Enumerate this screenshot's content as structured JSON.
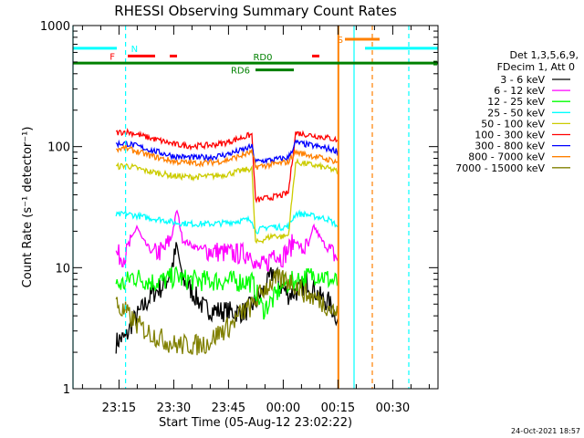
{
  "chart_data": {
    "type": "line",
    "title": "RHESSI Observing Summary Count Rates",
    "xlabel": "Start Time (05-Aug-12 23:02:22)",
    "ylabel": "Count Rate (s⁻¹ detector⁻¹)",
    "yscale": "log",
    "ylim": [
      1,
      1000
    ],
    "xlim_min": [
      0,
      100
    ],
    "x_unit": "minutes after 23:02:22",
    "y_ticks": [
      {
        "value": 1,
        "label": "1"
      },
      {
        "value": 10,
        "label": "10"
      },
      {
        "value": 100,
        "label": "100"
      },
      {
        "value": 1000,
        "label": "1000"
      }
    ],
    "x_ticks": [
      {
        "value": 12.6,
        "label": "23:15"
      },
      {
        "value": 27.6,
        "label": "23:30"
      },
      {
        "value": 42.6,
        "label": "23:45"
      },
      {
        "value": 57.6,
        "label": "00:00"
      },
      {
        "value": 72.6,
        "label": "00:15"
      },
      {
        "value": 87.6,
        "label": "00:30"
      }
    ],
    "legend_header": [
      "Det 1,3,5,6,9,",
      "FDecim 1, Att 0"
    ],
    "legend_position": "right",
    "footer_date": "24-Oct-2021 18:57",
    "series": [
      {
        "name": "3 - 6 keV",
        "color": "#000000",
        "points": [
          [
            11.8,
            2.4
          ],
          [
            13,
            2.6
          ],
          [
            14.4,
            2.6
          ],
          [
            16,
            3.4
          ],
          [
            19,
            4.6
          ],
          [
            22,
            6.2
          ],
          [
            25,
            7.1
          ],
          [
            27,
            9.8
          ],
          [
            28.5,
            15
          ],
          [
            30,
            8.2
          ],
          [
            33,
            6.1
          ],
          [
            36,
            4.6
          ],
          [
            40,
            4.4
          ],
          [
            44,
            4.3
          ],
          [
            47,
            4.3
          ],
          [
            50,
            5.2
          ],
          [
            53,
            7
          ],
          [
            55,
            9.5
          ],
          [
            57,
            7
          ],
          [
            59,
            6
          ],
          [
            62,
            6.5
          ],
          [
            64,
            7.8
          ],
          [
            66,
            6.6
          ],
          [
            68,
            5.6
          ],
          [
            70,
            5.2
          ],
          [
            71,
            4.6
          ],
          [
            72.6,
            3.8
          ]
        ]
      },
      {
        "name": "6 - 12 keV",
        "color": "#ff00ff",
        "points": [
          [
            11.8,
            13
          ],
          [
            13,
            12.5
          ],
          [
            14.4,
            12.5
          ],
          [
            16,
            17
          ],
          [
            17.5,
            22
          ],
          [
            19,
            17
          ],
          [
            22,
            13
          ],
          [
            25,
            14
          ],
          [
            27,
            18
          ],
          [
            28.5,
            30
          ],
          [
            30,
            17
          ],
          [
            33,
            15
          ],
          [
            36,
            14
          ],
          [
            40,
            13.5
          ],
          [
            44,
            13
          ],
          [
            47,
            13
          ],
          [
            49,
            13.5
          ],
          [
            50,
            10
          ],
          [
            53,
            10.5
          ],
          [
            55,
            14
          ],
          [
            57,
            12
          ],
          [
            59,
            14
          ],
          [
            61,
            17
          ],
          [
            62.5,
            14
          ],
          [
            64.5,
            15
          ],
          [
            66,
            22
          ],
          [
            68,
            17
          ],
          [
            70,
            14
          ],
          [
            72.6,
            12
          ]
        ]
      },
      {
        "name": "12 - 25 keV",
        "color": "#00ff00",
        "points": [
          [
            11.8,
            7.2
          ],
          [
            14.4,
            7.4
          ],
          [
            16,
            8.5
          ],
          [
            18,
            8.2
          ],
          [
            22,
            7.6
          ],
          [
            25,
            7.8
          ],
          [
            28.5,
            8.6
          ],
          [
            30,
            8
          ],
          [
            35,
            7.8
          ],
          [
            40,
            7.8
          ],
          [
            44,
            7.7
          ],
          [
            47,
            7.7
          ],
          [
            49,
            7.6
          ],
          [
            50,
            6.5
          ],
          [
            52,
            4.5
          ],
          [
            55,
            5.5
          ],
          [
            57,
            7
          ],
          [
            59,
            7.5
          ],
          [
            61,
            7.8
          ],
          [
            65,
            8.5
          ],
          [
            67,
            9
          ],
          [
            70,
            8
          ],
          [
            72.6,
            7.5
          ]
        ]
      },
      {
        "name": "25 - 50 keV",
        "color": "#00ffff",
        "points": [
          [
            11.8,
            27
          ],
          [
            14.4,
            28
          ],
          [
            17,
            27
          ],
          [
            20,
            26
          ],
          [
            24,
            25
          ],
          [
            28,
            23.5
          ],
          [
            33,
            23
          ],
          [
            38,
            23
          ],
          [
            42,
            23.5
          ],
          [
            46,
            24.5
          ],
          [
            49,
            25
          ],
          [
            50,
            20
          ],
          [
            52,
            21
          ],
          [
            54,
            22
          ],
          [
            57,
            21.5
          ],
          [
            59,
            22
          ],
          [
            61,
            28
          ],
          [
            64,
            27.5
          ],
          [
            66,
            26.5
          ],
          [
            68,
            26
          ],
          [
            70,
            25
          ],
          [
            72.6,
            22
          ]
        ]
      },
      {
        "name": "50 - 100 keV",
        "color": "#cccc00",
        "points": [
          [
            11.8,
            68
          ],
          [
            14.4,
            70
          ],
          [
            17,
            67
          ],
          [
            20,
            63
          ],
          [
            24,
            60
          ],
          [
            28,
            57
          ],
          [
            33,
            56
          ],
          [
            38,
            57
          ],
          [
            42,
            59
          ],
          [
            46,
            63
          ],
          [
            49,
            66
          ],
          [
            50,
            16
          ],
          [
            53,
            17.5
          ],
          [
            55,
            18.5
          ],
          [
            57,
            18
          ],
          [
            59,
            18.5
          ],
          [
            61,
            74
          ],
          [
            64,
            72
          ],
          [
            67,
            69
          ],
          [
            70,
            66
          ],
          [
            72.6,
            62
          ]
        ]
      },
      {
        "name": "100 - 300 keV",
        "color": "#ff0000",
        "points": [
          [
            11.8,
            130
          ],
          [
            14.4,
            133
          ],
          [
            17,
            128
          ],
          [
            20,
            120
          ],
          [
            24,
            112
          ],
          [
            28,
            104
          ],
          [
            33,
            101
          ],
          [
            38,
            103
          ],
          [
            42,
            108
          ],
          [
            46,
            118
          ],
          [
            49,
            126
          ],
          [
            50,
            36
          ],
          [
            53,
            37.5
          ],
          [
            55,
            38.5
          ],
          [
            57,
            39.5
          ],
          [
            59,
            41.5
          ],
          [
            61,
            130
          ],
          [
            64,
            126
          ],
          [
            67,
            122
          ],
          [
            70,
            118
          ],
          [
            72.6,
            113
          ]
        ]
      },
      {
        "name": "300 - 800 keV",
        "color": "#0000ff",
        "points": [
          [
            11.8,
            105
          ],
          [
            14.4,
            107
          ],
          [
            17,
            102
          ],
          [
            20,
            96
          ],
          [
            24,
            89
          ],
          [
            28,
            83
          ],
          [
            33,
            81
          ],
          [
            38,
            82
          ],
          [
            42,
            86
          ],
          [
            46,
            93
          ],
          [
            49,
            100
          ],
          [
            50,
            75
          ],
          [
            53,
            77
          ],
          [
            55,
            78
          ],
          [
            57,
            79.5
          ],
          [
            59,
            81
          ],
          [
            61,
            108
          ],
          [
            64,
            104
          ],
          [
            67,
            100
          ],
          [
            70,
            96
          ],
          [
            72.6,
            92
          ]
        ]
      },
      {
        "name": "800 - 7000 keV",
        "color": "#ff8000",
        "points": [
          [
            11.8,
            95
          ],
          [
            14.4,
            97
          ],
          [
            17,
            92
          ],
          [
            20,
            86
          ],
          [
            24,
            80
          ],
          [
            28,
            75
          ],
          [
            33,
            73
          ],
          [
            38,
            74
          ],
          [
            42,
            77
          ],
          [
            46,
            84
          ],
          [
            49,
            90
          ],
          [
            50,
            68
          ],
          [
            53,
            70
          ],
          [
            55,
            71.5
          ],
          [
            57,
            73
          ],
          [
            59,
            75
          ],
          [
            61,
            90
          ],
          [
            64,
            86
          ],
          [
            67,
            82
          ],
          [
            70,
            78
          ],
          [
            72.6,
            75
          ]
        ]
      },
      {
        "name": "7000 - 15000 keV",
        "color": "#808000",
        "points": [
          [
            11.8,
            5.2
          ],
          [
            13,
            4.4
          ],
          [
            14.4,
            4.3
          ],
          [
            17,
            3.5
          ],
          [
            20,
            3
          ],
          [
            24,
            2.6
          ],
          [
            28,
            2.3
          ],
          [
            31,
            2.3
          ],
          [
            34,
            2.3
          ],
          [
            37,
            2.4
          ],
          [
            40,
            2.9
          ],
          [
            43,
            3.3
          ],
          [
            46,
            4.2
          ],
          [
            49,
            4.8
          ],
          [
            52,
            6.5
          ],
          [
            55,
            7.8
          ],
          [
            58,
            8
          ],
          [
            60,
            7.6
          ],
          [
            62,
            6.8
          ],
          [
            64,
            6
          ],
          [
            67,
            5.5
          ],
          [
            70,
            4.8
          ],
          [
            72.6,
            4
          ]
        ]
      }
    ],
    "top_bar_labels": {
      "N": "N",
      "F": "F",
      "RD0": "RD0",
      "RD6": "RD6",
      "S": "S"
    },
    "top_bars": [
      {
        "code": "N",
        "color": "#00ffff",
        "level": 650,
        "segments": [
          [
            -1,
            12
          ],
          [
            80,
            101
          ]
        ]
      },
      {
        "code": "F",
        "color": "#ff0000",
        "level": 560,
        "segments": [
          [
            15,
            22.5
          ],
          [
            26.5,
            28.5
          ],
          [
            65.5,
            67.5
          ]
        ]
      },
      {
        "code": "RD0",
        "color": "#008000",
        "level": 490,
        "segments": [
          [
            -1,
            101
          ]
        ]
      },
      {
        "code": "RD6",
        "color": "#008000",
        "level": 430,
        "segments": [
          [
            50,
            60.5
          ]
        ]
      },
      {
        "code": "S",
        "color": "#ff8000",
        "level": 770,
        "segments": [
          [
            74.5,
            84
          ]
        ]
      }
    ],
    "vertical_markers": [
      {
        "x": 0,
        "color": "#00ffff",
        "style": "solid"
      },
      {
        "x": 14.4,
        "color": "#00ffff",
        "style": "dashed"
      },
      {
        "x": 72.6,
        "color": "#ff8000",
        "style": "solid"
      },
      {
        "x": 72.8,
        "color": "#ff8000",
        "style": "solid"
      },
      {
        "x": 77,
        "color": "#00ffff",
        "style": "solid"
      },
      {
        "x": 82,
        "color": "#ff8000",
        "style": "dashed"
      },
      {
        "x": 92,
        "color": "#00ffff",
        "style": "dashed"
      }
    ]
  }
}
